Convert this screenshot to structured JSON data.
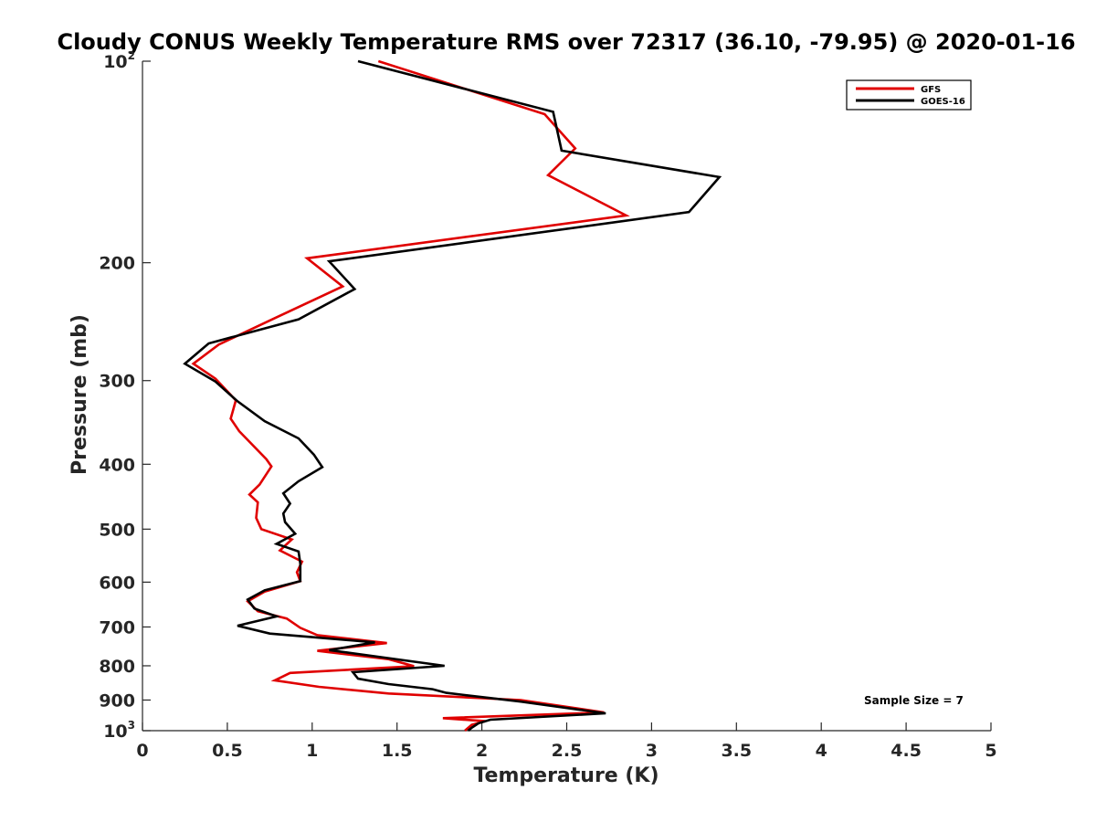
{
  "chart_data": {
    "type": "line",
    "title": "Cloudy CONUS Weekly Temperature RMS over 72317 (36.10, -79.95) @ 2020-01-16",
    "xlabel": "Temperature (K)",
    "ylabel": "Pressure (mb)",
    "xlim": [
      0,
      5
    ],
    "ylim": [
      100,
      1000
    ],
    "yscale": "log",
    "y_reversed": true,
    "x_ticks": [
      "0",
      "0.5",
      "1",
      "1.5",
      "2",
      "2.5",
      "3",
      "3.5",
      "4",
      "4.5",
      "5"
    ],
    "y_ticks": [
      {
        "value": 100,
        "label": "10",
        "exp": "2"
      },
      {
        "value": 200,
        "label": "200"
      },
      {
        "value": 300,
        "label": "300"
      },
      {
        "value": 400,
        "label": "400"
      },
      {
        "value": 500,
        "label": "500"
      },
      {
        "value": 600,
        "label": "600"
      },
      {
        "value": 700,
        "label": "700"
      },
      {
        "value": 800,
        "label": "800"
      },
      {
        "value": 900,
        "label": "900"
      },
      {
        "value": 1000,
        "label": "10",
        "exp": "3"
      }
    ],
    "grid": false,
    "legend_position": "top-right",
    "annotation": "Sample Size = 7",
    "series": [
      {
        "name": "GFS",
        "color": "#e00000",
        "points": [
          [
            1.39,
            100
          ],
          [
            2.37,
            120
          ],
          [
            2.55,
            135
          ],
          [
            2.39,
            148
          ],
          [
            2.85,
            170
          ],
          [
            0.97,
            197
          ],
          [
            1.18,
            217
          ],
          [
            0.78,
            242
          ],
          [
            0.45,
            265
          ],
          [
            0.3,
            283
          ],
          [
            0.43,
            298
          ],
          [
            0.55,
            321
          ],
          [
            0.52,
            342
          ],
          [
            0.57,
            357
          ],
          [
            0.73,
            393
          ],
          [
            0.76,
            403
          ],
          [
            0.69,
            429
          ],
          [
            0.63,
            444
          ],
          [
            0.68,
            456
          ],
          [
            0.67,
            481
          ],
          [
            0.7,
            500
          ],
          [
            0.88,
            518
          ],
          [
            0.81,
            538
          ],
          [
            0.94,
            559
          ],
          [
            0.91,
            580
          ],
          [
            0.93,
            598
          ],
          [
            0.72,
            620
          ],
          [
            0.62,
            641
          ],
          [
            0.68,
            663
          ],
          [
            0.85,
            680
          ],
          [
            0.93,
            702
          ],
          [
            1.03,
            720
          ],
          [
            1.44,
            740
          ],
          [
            1.03,
            760
          ],
          [
            1.45,
            782
          ],
          [
            1.6,
            801
          ],
          [
            0.87,
            820
          ],
          [
            0.78,
            841
          ],
          [
            1.04,
            860
          ],
          [
            1.45,
            880
          ],
          [
            2.23,
            900
          ],
          [
            2.72,
            939
          ],
          [
            1.77,
            958
          ],
          [
            2.02,
            968
          ],
          [
            1.94,
            980
          ],
          [
            1.9,
            1000
          ]
        ]
      },
      {
        "name": "GOES-16",
        "color": "#000000",
        "points": [
          [
            1.27,
            100
          ],
          [
            2.42,
            119
          ],
          [
            2.47,
            136
          ],
          [
            3.4,
            149
          ],
          [
            3.22,
            168
          ],
          [
            1.1,
            199
          ],
          [
            1.25,
            219
          ],
          [
            0.92,
            243
          ],
          [
            0.39,
            264
          ],
          [
            0.25,
            283
          ],
          [
            0.43,
            301
          ],
          [
            0.56,
            322
          ],
          [
            0.72,
            345
          ],
          [
            0.92,
            366
          ],
          [
            1.01,
            387
          ],
          [
            1.06,
            404
          ],
          [
            0.92,
            424
          ],
          [
            0.83,
            442
          ],
          [
            0.87,
            458
          ],
          [
            0.83,
            474
          ],
          [
            0.84,
            488
          ],
          [
            0.9,
            508
          ],
          [
            0.79,
            526
          ],
          [
            0.92,
            540
          ],
          [
            0.93,
            563
          ],
          [
            0.93,
            598
          ],
          [
            0.72,
            617
          ],
          [
            0.62,
            637
          ],
          [
            0.66,
            657
          ],
          [
            0.79,
            675
          ],
          [
            0.56,
            697
          ],
          [
            0.75,
            716
          ],
          [
            1.37,
            738
          ],
          [
            1.1,
            758
          ],
          [
            1.78,
            800
          ],
          [
            1.24,
            818
          ],
          [
            1.27,
            836
          ],
          [
            1.45,
            852
          ],
          [
            1.71,
            867
          ],
          [
            1.79,
            878
          ],
          [
            2.23,
            905
          ],
          [
            2.73,
            942
          ],
          [
            2.05,
            963
          ],
          [
            1.98,
            975
          ],
          [
            1.94,
            990
          ],
          [
            1.92,
            1000
          ]
        ]
      }
    ]
  }
}
